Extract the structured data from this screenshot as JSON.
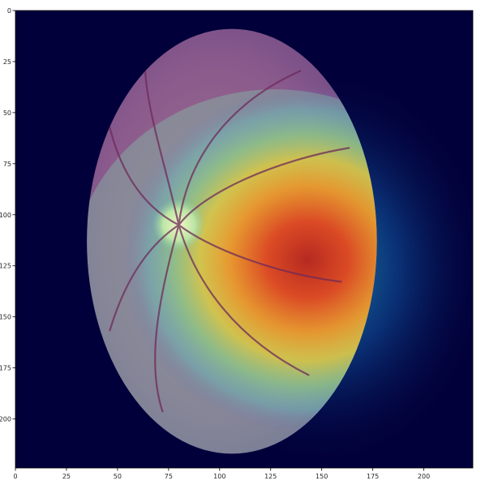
{
  "figure": {
    "type": "image-heatmap-overlay",
    "subject": "retinal fundus image with attention heatmap overlay",
    "colormap": "jet",
    "background_color": "#02003a"
  },
  "axes": {
    "x": {
      "lim": [
        0,
        224
      ],
      "ticks": [
        0,
        25,
        50,
        75,
        100,
        125,
        150,
        175,
        200
      ],
      "tick_labels": [
        "0",
        "25",
        "50",
        "75",
        "100",
        "125",
        "150",
        "175",
        "200"
      ]
    },
    "y": {
      "lim": [
        0,
        224
      ],
      "inverted": true,
      "ticks": [
        0,
        25,
        50,
        75,
        100,
        125,
        150,
        175,
        200
      ],
      "tick_labels": [
        "0",
        "25",
        "50",
        "75",
        "100",
        "125",
        "150",
        "175",
        "200"
      ]
    }
  },
  "image": {
    "fundus": {
      "center_x": 106,
      "center_y": 113,
      "radius_x": 71,
      "radius_y": 104,
      "tint": "#8a5a8c"
    },
    "optic_disc": {
      "x": 80,
      "y": 105,
      "r": 8,
      "color": "#d9f0b0"
    },
    "heatmap_peak": {
      "x": 143,
      "y": 122,
      "color": "#c8321e"
    }
  }
}
